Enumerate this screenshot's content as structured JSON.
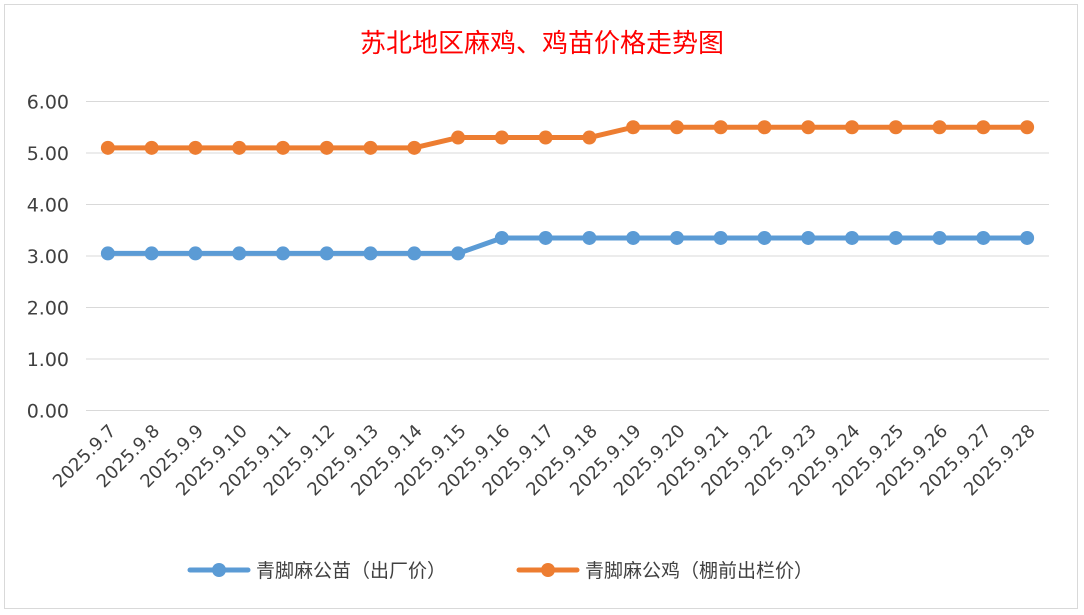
{
  "chart_data": {
    "type": "line",
    "title": "苏北地区麻鸡、鸡苗价格走势图",
    "categories": [
      "2025.9.7",
      "2025.9.8",
      "2025.9.9",
      "2025.9.10",
      "2025.9.11",
      "2025.9.12",
      "2025.9.13",
      "2025.9.14",
      "2025.9.15",
      "2025.9.16",
      "2025.9.17",
      "2025.9.18",
      "2025.9.19",
      "2025.9.20",
      "2025.9.21",
      "2025.9.22",
      "2025.9.23",
      "2025.9.24",
      "2025.9.25",
      "2025.9.26",
      "2025.9.27",
      "2025.9.28"
    ],
    "yticks": [
      "0.00",
      "1.00",
      "2.00",
      "3.00",
      "4.00",
      "5.00",
      "6.00"
    ],
    "ylim": [
      0,
      6
    ],
    "grid": true,
    "legend_position": "bottom",
    "series": [
      {
        "name": "青脚麻公苗（出厂价）",
        "color": "#5b9bd5",
        "values": [
          3.05,
          3.05,
          3.05,
          3.05,
          3.05,
          3.05,
          3.05,
          3.05,
          3.05,
          3.35,
          3.35,
          3.35,
          3.35,
          3.35,
          3.35,
          3.35,
          3.35,
          3.35,
          3.35,
          3.35,
          3.35,
          3.35
        ]
      },
      {
        "name": "青脚麻公鸡（棚前出栏价）",
        "color": "#ed7d31",
        "values": [
          5.1,
          5.1,
          5.1,
          5.1,
          5.1,
          5.1,
          5.1,
          5.1,
          5.3,
          5.3,
          5.3,
          5.3,
          5.5,
          5.5,
          5.5,
          5.5,
          5.5,
          5.5,
          5.5,
          5.5,
          5.5,
          5.5
        ]
      }
    ]
  }
}
